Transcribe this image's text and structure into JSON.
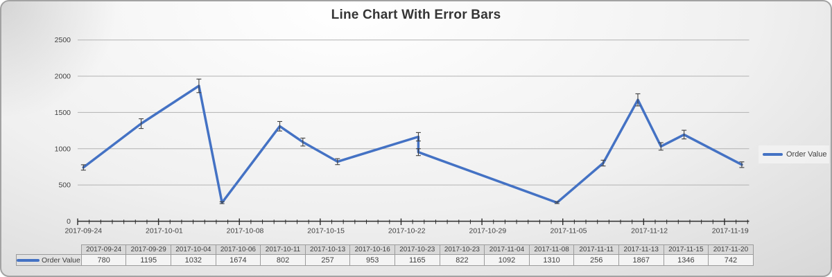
{
  "title": "Line Chart With Error Bars",
  "legend": {
    "label": "Order Value"
  },
  "chart_data": {
    "type": "line",
    "title": "Line Chart With Error Bars",
    "series": [
      {
        "name": "Order Value",
        "dates": [
          "2017-09-24",
          "2017-09-29",
          "2017-10-04",
          "2017-10-06",
          "2017-10-11",
          "2017-10-13",
          "2017-10-16",
          "2017-10-23",
          "2017-10-23",
          "2017-11-04",
          "2017-11-08",
          "2017-11-11",
          "2017-11-13",
          "2017-11-15",
          "2017-11-20"
        ],
        "values_table_order": [
          780,
          1195,
          1032,
          1674,
          802,
          257,
          953,
          1165,
          822,
          1092,
          1310,
          256,
          1867,
          1346,
          742
        ],
        "values_plotted_in_date_order": [
          742,
          1346,
          1867,
          256,
          1310,
          1092,
          822,
          1165,
          953,
          257,
          802,
          1674,
          1032,
          1195,
          780
        ],
        "error_bar_pct": 5
      }
    ],
    "x_axis_tick_labels": [
      "2017-09-24",
      "2017-10-01",
      "2017-10-08",
      "2017-10-15",
      "2017-10-22",
      "2017-10-29",
      "2017-11-05",
      "2017-11-12",
      "2017-11-19"
    ],
    "y_axis_ticks": [
      0,
      500,
      1000,
      1500,
      2000,
      2500
    ],
    "ylim": [
      0,
      2500
    ],
    "grid": true,
    "legend_position": "right",
    "colors": {
      "line": "#4472c4",
      "error_bar": "#3f3f3f",
      "gridline": "#b2b2b2",
      "axis": "#2b2b2b",
      "text": "#3f3f3f"
    }
  },
  "data_table": {
    "row_label": "Order Value",
    "column_headers": [
      "2017-09-24",
      "2017-09-29",
      "2017-10-04",
      "2017-10-06",
      "2017-10-11",
      "2017-10-13",
      "2017-10-16",
      "2017-10-23",
      "2017-10-23",
      "2017-11-04",
      "2017-11-08",
      "2017-11-11",
      "2017-11-13",
      "2017-11-15",
      "2017-11-20"
    ],
    "row_values": [
      780,
      1195,
      1032,
      1674,
      802,
      257,
      953,
      1165,
      822,
      1092,
      1310,
      256,
      1867,
      1346,
      742
    ]
  }
}
